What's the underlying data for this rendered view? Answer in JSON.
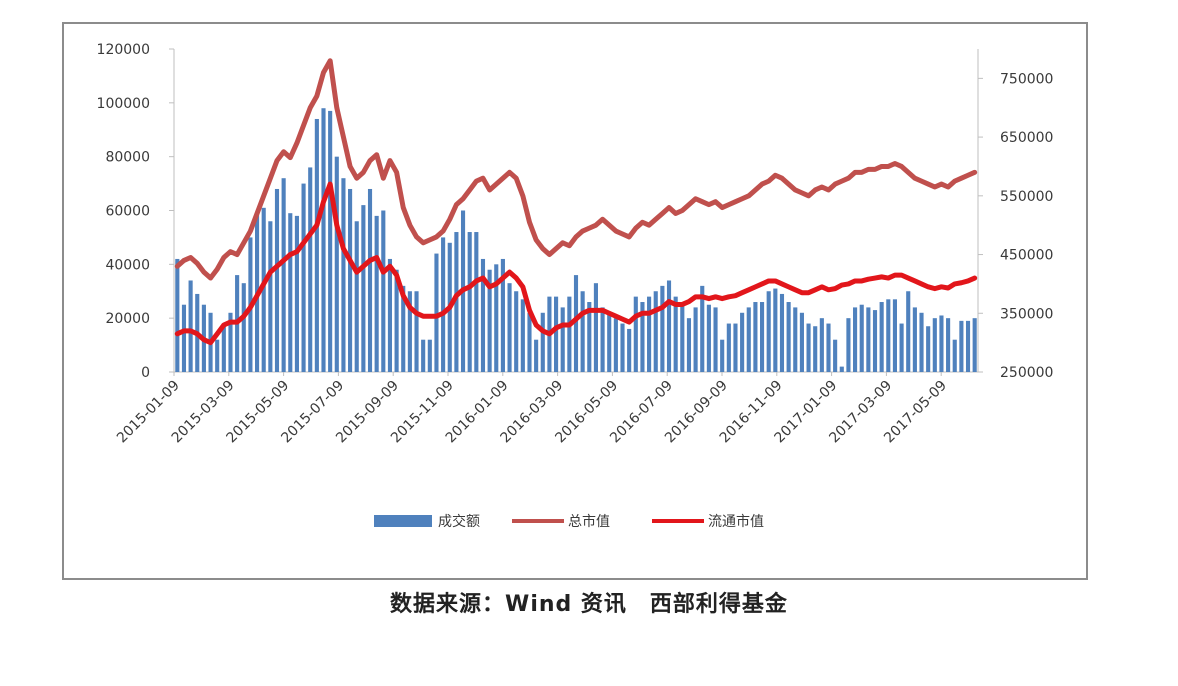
{
  "source_note": "数据来源：Wind 资讯　西部利得基金",
  "colors": {
    "bar": "#4f81bd",
    "total": "#c0504d",
    "float": "#e2161b",
    "axis": "#bfbfbf"
  },
  "chart_data": {
    "type": "bar+line",
    "left_axis": {
      "ylim": [
        0,
        120000
      ],
      "ticks": [
        "0",
        "20000",
        "40000",
        "60000",
        "80000",
        "100000",
        "120000"
      ]
    },
    "right_axis": {
      "ylim": [
        250000,
        800000
      ],
      "ticks": [
        "250000",
        "350000",
        "450000",
        "550000",
        "650000",
        "750000"
      ]
    },
    "x_tick_labels": [
      "2015-01-09",
      "2015-03-09",
      "2015-05-09",
      "2015-07-09",
      "2015-09-09",
      "2015-11-09",
      "2016-01-09",
      "2016-03-09",
      "2016-05-09",
      "2016-07-09",
      "2016-09-09",
      "2016-11-09",
      "2017-01-09",
      "2017-03-09",
      "2017-05-09"
    ],
    "legend_position": "bottom",
    "series": [
      {
        "name": "成交额",
        "type": "bar",
        "axis": "left",
        "values": [
          42000,
          25000,
          34000,
          29000,
          25000,
          22000,
          12000,
          18000,
          22000,
          36000,
          33000,
          50000,
          59000,
          61000,
          56000,
          68000,
          72000,
          59000,
          58000,
          70000,
          76000,
          94000,
          98000,
          97000,
          80000,
          72000,
          68000,
          56000,
          62000,
          68000,
          58000,
          60000,
          42000,
          38000,
          32000,
          30000,
          30000,
          12000,
          12000,
          44000,
          50000,
          48000,
          52000,
          60000,
          52000,
          52000,
          42000,
          38000,
          40000,
          42000,
          33000,
          30000,
          27000,
          22000,
          12000,
          22000,
          28000,
          28000,
          24000,
          28000,
          36000,
          30000,
          26000,
          33000,
          24000,
          22000,
          20000,
          18000,
          16000,
          28000,
          26000,
          28000,
          30000,
          32000,
          34000,
          28000,
          25000,
          20000,
          24000,
          32000,
          25000,
          24000,
          12000,
          18000,
          18000,
          22000,
          24000,
          26000,
          26000,
          30000,
          31000,
          29000,
          26000,
          24000,
          22000,
          18000,
          17000,
          20000,
          18000,
          12000,
          2000,
          20000,
          24000,
          25000,
          24000,
          23000,
          26000,
          27000,
          27000,
          18000,
          30000,
          24000,
          22000,
          17000,
          20000,
          21000,
          20000,
          12000,
          19000,
          19000,
          20000
        ]
      },
      {
        "name": "总市值",
        "type": "line",
        "axis": "right",
        "values": [
          430000,
          440000,
          445000,
          435000,
          420000,
          410000,
          425000,
          445000,
          455000,
          450000,
          470000,
          490000,
          520000,
          550000,
          580000,
          610000,
          625000,
          615000,
          640000,
          670000,
          700000,
          720000,
          760000,
          780000,
          700000,
          650000,
          600000,
          580000,
          590000,
          610000,
          620000,
          580000,
          610000,
          590000,
          530000,
          500000,
          480000,
          470000,
          475000,
          480000,
          490000,
          510000,
          535000,
          545000,
          560000,
          575000,
          580000,
          560000,
          570000,
          580000,
          590000,
          580000,
          550000,
          505000,
          475000,
          460000,
          450000,
          460000,
          470000,
          465000,
          480000,
          490000,
          495000,
          500000,
          510000,
          500000,
          490000,
          485000,
          480000,
          495000,
          505000,
          500000,
          510000,
          520000,
          530000,
          520000,
          525000,
          535000,
          545000,
          540000,
          535000,
          540000,
          530000,
          535000,
          540000,
          545000,
          550000,
          560000,
          570000,
          575000,
          585000,
          580000,
          570000,
          560000,
          555000,
          550000,
          560000,
          565000,
          560000,
          570000,
          575000,
          580000,
          590000,
          590000,
          595000,
          595000,
          600000,
          600000,
          605000,
          600000,
          590000,
          580000,
          575000,
          570000,
          565000,
          570000,
          565000,
          575000,
          580000,
          585000,
          590000
        ]
      },
      {
        "name": "流通市值",
        "type": "line",
        "axis": "right",
        "values": [
          315000,
          320000,
          320000,
          315000,
          305000,
          300000,
          315000,
          330000,
          335000,
          335000,
          345000,
          360000,
          380000,
          400000,
          420000,
          430000,
          440000,
          450000,
          455000,
          470000,
          485000,
          500000,
          540000,
          570000,
          500000,
          460000,
          440000,
          420000,
          430000,
          440000,
          445000,
          420000,
          430000,
          415000,
          380000,
          360000,
          350000,
          345000,
          345000,
          345000,
          350000,
          360000,
          380000,
          390000,
          395000,
          405000,
          410000,
          395000,
          400000,
          410000,
          420000,
          410000,
          395000,
          355000,
          330000,
          320000,
          315000,
          325000,
          330000,
          330000,
          340000,
          350000,
          355000,
          355000,
          355000,
          350000,
          345000,
          340000,
          335000,
          345000,
          350000,
          350000,
          355000,
          360000,
          370000,
          365000,
          365000,
          370000,
          378000,
          378000,
          375000,
          378000,
          375000,
          378000,
          380000,
          385000,
          390000,
          395000,
          400000,
          405000,
          405000,
          400000,
          395000,
          390000,
          385000,
          385000,
          390000,
          395000,
          390000,
          392000,
          398000,
          400000,
          405000,
          405000,
          408000,
          410000,
          412000,
          410000,
          415000,
          415000,
          410000,
          405000,
          400000,
          395000,
          392000,
          395000,
          393000,
          400000,
          402000,
          405000,
          410000
        ]
      }
    ]
  }
}
